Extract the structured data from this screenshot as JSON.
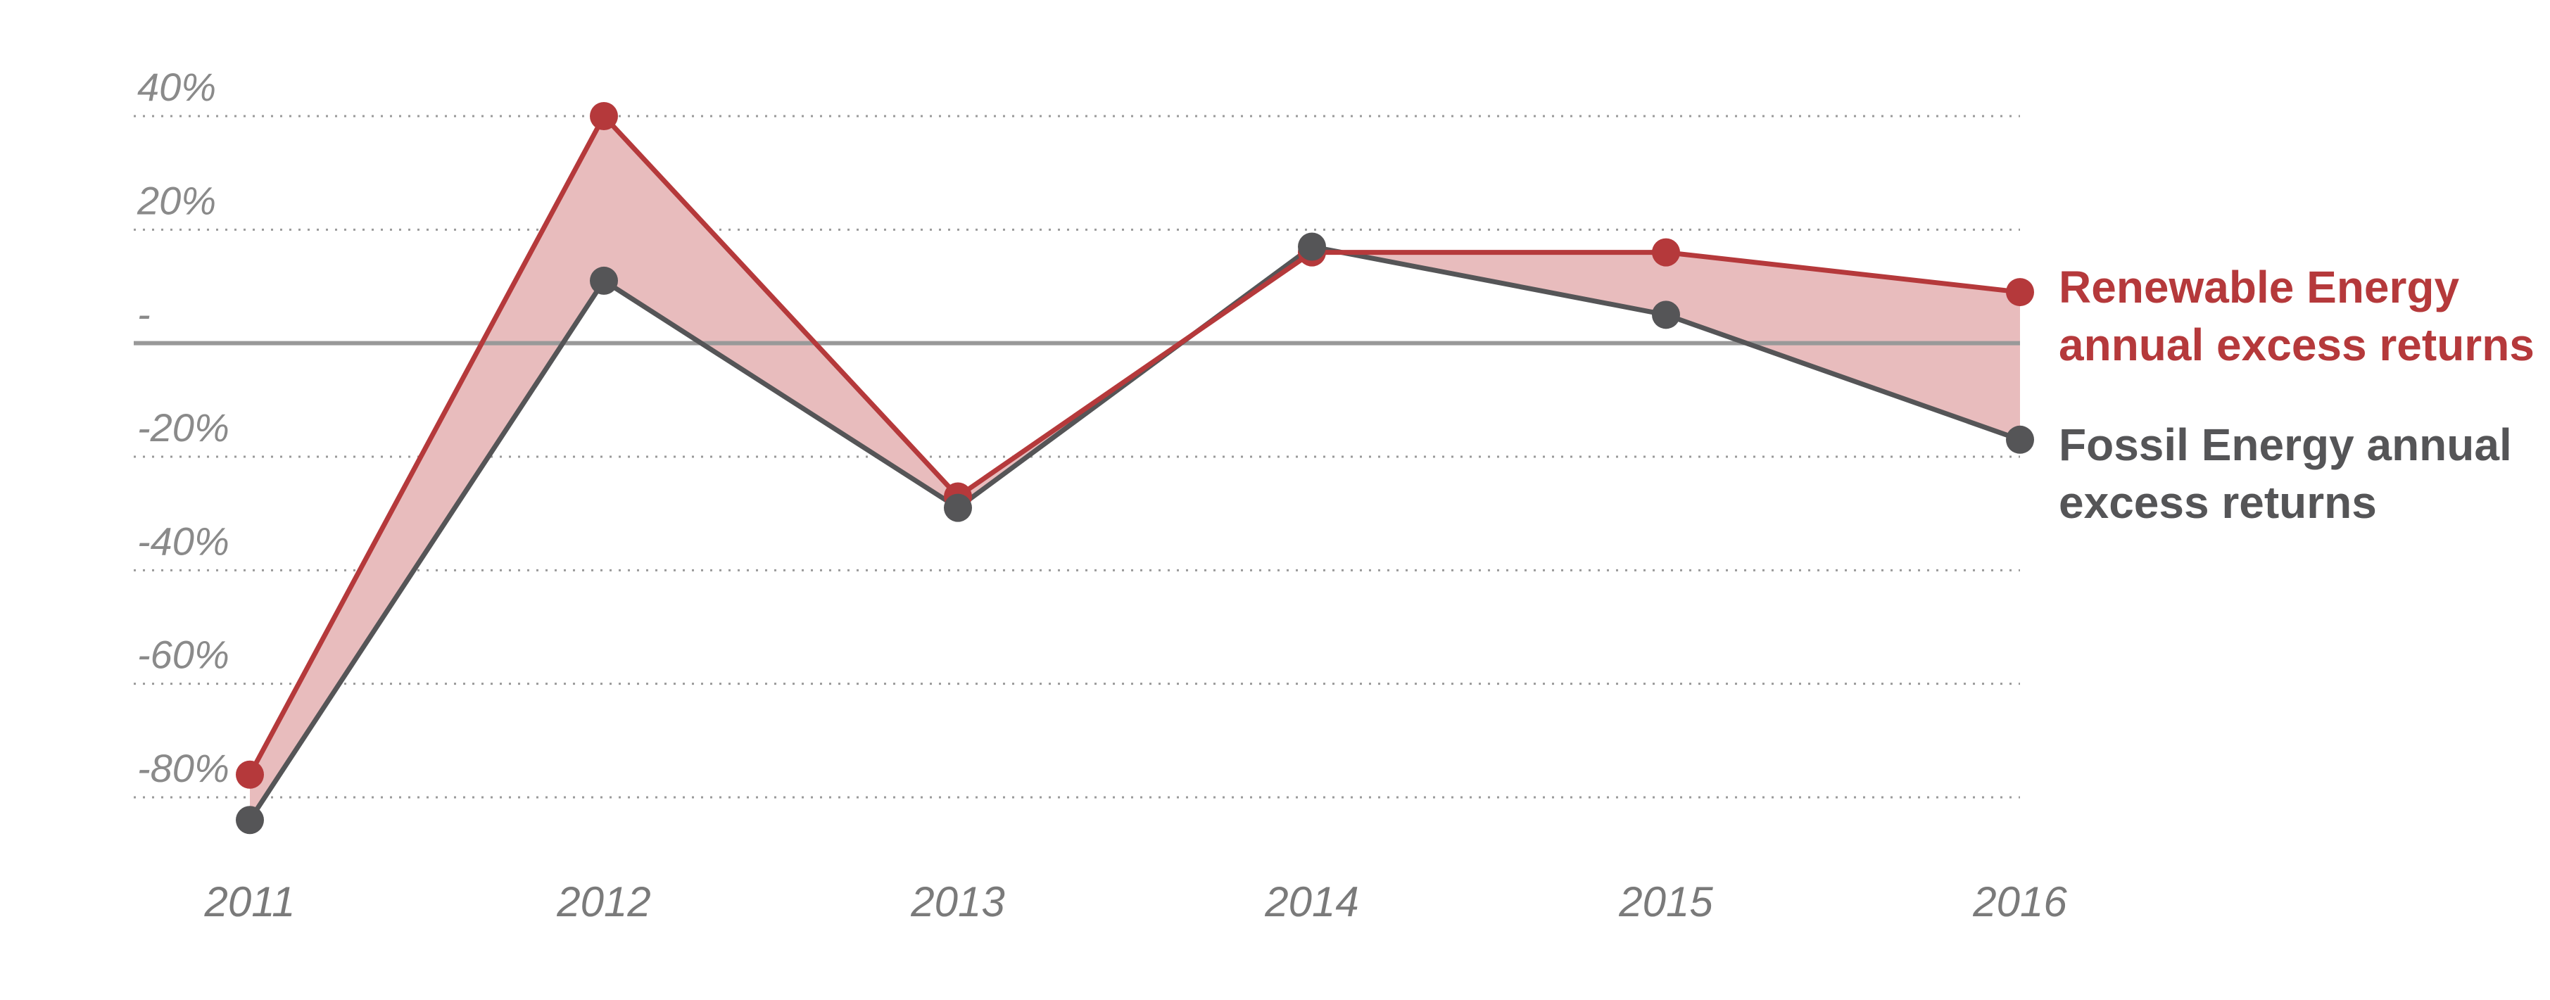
{
  "chart_data": {
    "type": "line",
    "title": "",
    "xlabel": "",
    "ylabel": "",
    "x": [
      "2011",
      "2012",
      "2013",
      "2014",
      "2015",
      "2016"
    ],
    "ylim": [
      -80,
      40
    ],
    "yticks": [
      40,
      20,
      0,
      -20,
      -40,
      -60,
      -80
    ],
    "ytick_labels": [
      "40%",
      "20%",
      "-",
      "-20%",
      "-40%",
      "-60%",
      "-80%"
    ],
    "grid": "horizontal dotted",
    "legend_placement": "right",
    "fill_between_color": "#e8bcbd",
    "series": [
      {
        "name": "Renewable Energy annual excess returns",
        "name_lines": [
          "Renewable Energy",
          "annual excess returns"
        ],
        "color": "#b5393b",
        "values": [
          -76,
          40,
          -27,
          16,
          16,
          9
        ]
      },
      {
        "name": "Fossil Energy annual excess returns",
        "name_lines": [
          "Fossil Energy annual",
          "excess returns"
        ],
        "color": "#555557",
        "values": [
          -84,
          11,
          -29,
          17,
          5,
          -17
        ]
      }
    ]
  }
}
